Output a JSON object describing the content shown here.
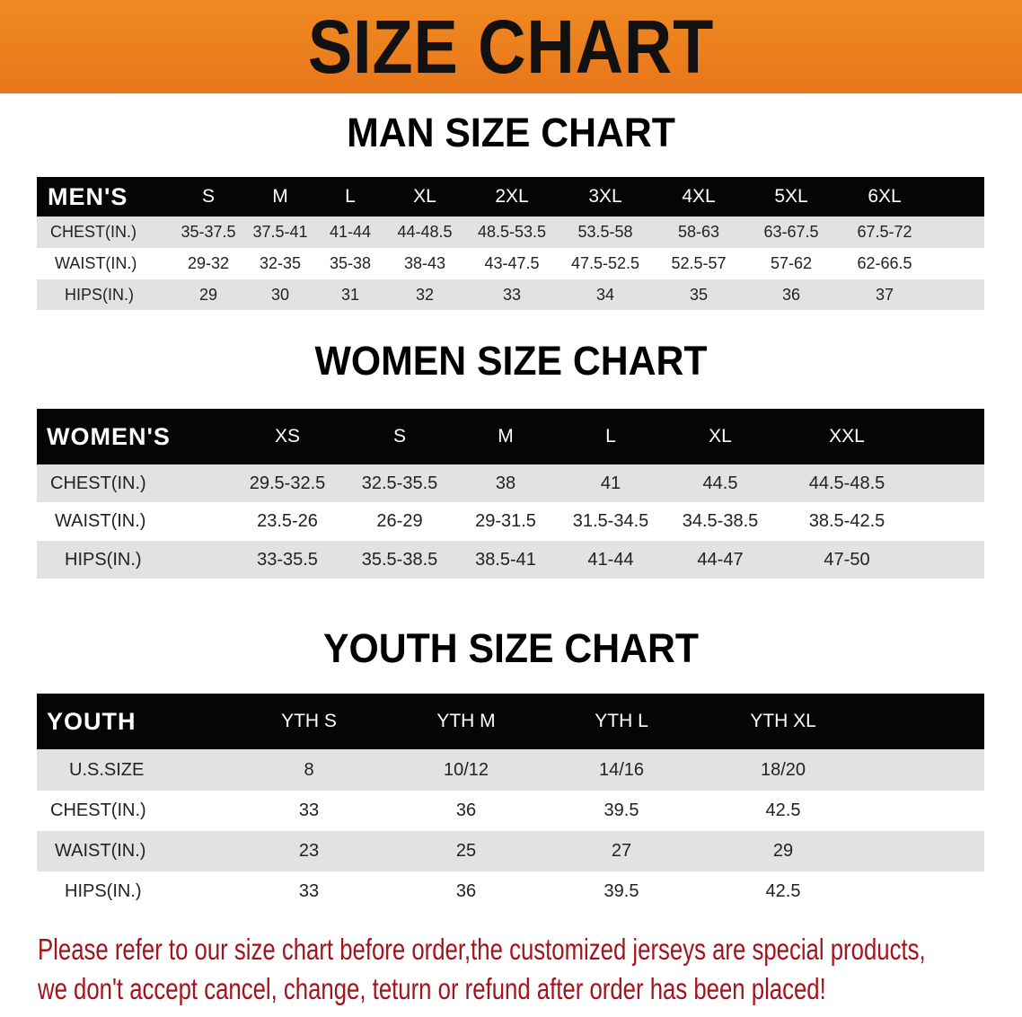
{
  "banner_title": "SIZE CHART",
  "colors": {
    "banner": "#ec801e",
    "header_row": "#050505",
    "stripe": "#e2e2e4",
    "note": "#a3141c"
  },
  "men": {
    "title": "MAN SIZE CHART",
    "header": [
      "MEN'S",
      "S",
      "M",
      "L",
      "XL",
      "2XL",
      "3XL",
      "4XL",
      "5XL",
      "6XL"
    ],
    "rows": [
      [
        "CHEST(IN.)",
        "35-37.5",
        "37.5-41",
        "41-44",
        "44-48.5",
        "48.5-53.5",
        "53.5-58",
        "58-63",
        "63-67.5",
        "67.5-72"
      ],
      [
        "WAIST(IN.)",
        "29-32",
        "32-35",
        "35-38",
        "38-43",
        "43-47.5",
        "47.5-52.5",
        "52.5-57",
        "57-62",
        "62-66.5"
      ],
      [
        "HIPS(IN.)",
        "29",
        "30",
        "31",
        "32",
        "33",
        "34",
        "35",
        "36",
        "37"
      ]
    ]
  },
  "women": {
    "title": "WOMEN SIZE CHART",
    "header": [
      "WOMEN'S",
      "XS",
      "S",
      "M",
      "L",
      "XL",
      "XXL"
    ],
    "rows": [
      [
        "CHEST(IN.)",
        "29.5-32.5",
        "32.5-35.5",
        "38",
        "41",
        "44.5",
        "44.5-48.5"
      ],
      [
        "WAIST(IN.)",
        "23.5-26",
        "26-29",
        "29-31.5",
        "31.5-34.5",
        "34.5-38.5",
        "38.5-42.5"
      ],
      [
        "HIPS(IN.)",
        "33-35.5",
        "35.5-38.5",
        "38.5-41",
        "41-44",
        "44-47",
        "47-50"
      ]
    ]
  },
  "youth": {
    "title": "YOUTH SIZE CHART",
    "header": [
      "YOUTH",
      "YTH S",
      "YTH M",
      "YTH L",
      "YTH XL"
    ],
    "rows": [
      [
        "U.S.SIZE",
        "8",
        "10/12",
        "14/16",
        "18/20"
      ],
      [
        "CHEST(IN.)",
        "33",
        "36",
        "39.5",
        "42.5"
      ],
      [
        "WAIST(IN.)",
        "23",
        "25",
        "27",
        "29"
      ],
      [
        "HIPS(IN.)",
        "33",
        "36",
        "39.5",
        "42.5"
      ]
    ]
  },
  "note": {
    "line1": "Please refer to our size chart before order,the customized jerseys are special products,",
    "line2": "we don't accept cancel, change, teturn or refund after order has been placed!"
  }
}
